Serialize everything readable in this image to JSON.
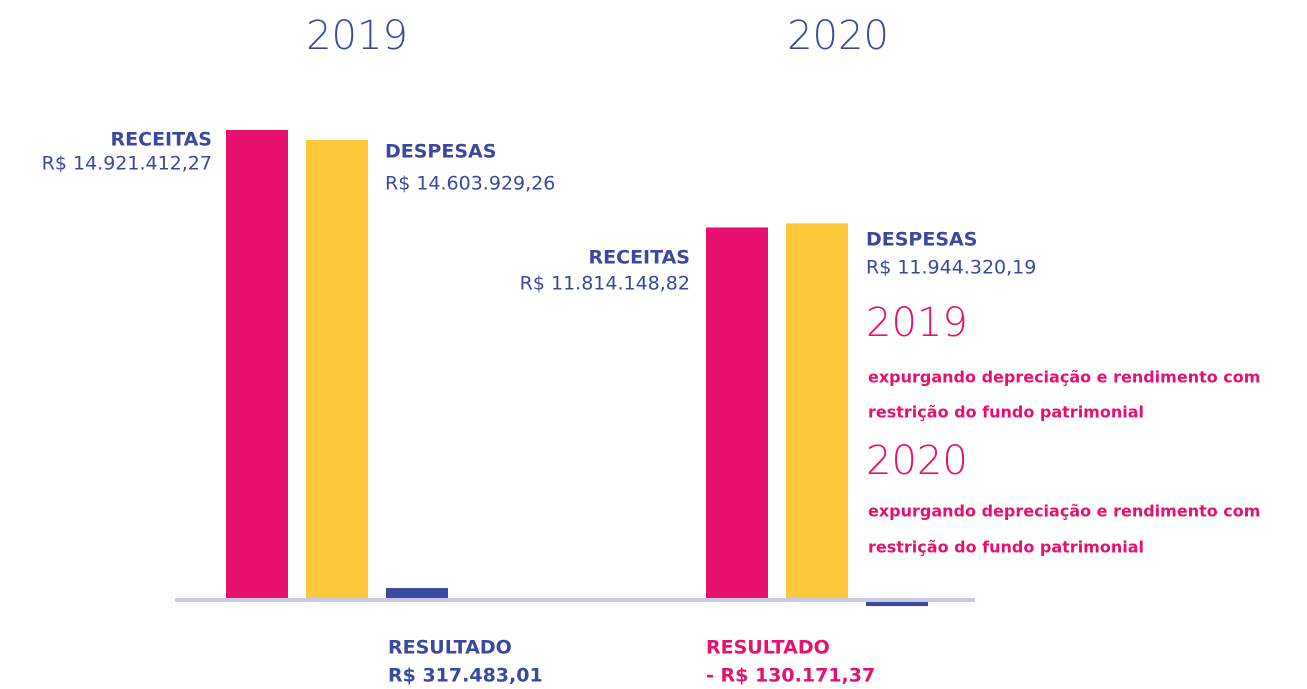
{
  "chart_data": {
    "type": "bar",
    "categories": [
      "2019",
      "2020"
    ],
    "series": [
      {
        "name": "RECEITAS",
        "color": "#e8106e",
        "values": [
          14921412.27,
          11814148.82
        ],
        "value_labels": [
          "R$ 14.921.412,27",
          "R$ 11.814.148,82"
        ]
      },
      {
        "name": "DESPESAS",
        "color": "#fcc93a",
        "values": [
          14603929.26,
          11944320.19
        ],
        "value_labels": [
          "R$ 14.603.929,26",
          "R$ 11.944.320,19"
        ]
      },
      {
        "name": "RESULTADO",
        "color": "#3b4aa0",
        "values": [
          317483.01,
          -130171.37
        ],
        "value_labels": [
          "R$ 317.483,01",
          "- R$ 130.171,37"
        ]
      }
    ],
    "notes": [
      {
        "title": "2019",
        "lines": [
          "expurgando depreciação e rendimento com",
          "restrição do fundo patrimonial"
        ]
      },
      {
        "title": "2020",
        "lines": [
          "expurgando depreciação e rendimento com",
          "restrição do fundo patrimonial"
        ]
      }
    ]
  }
}
